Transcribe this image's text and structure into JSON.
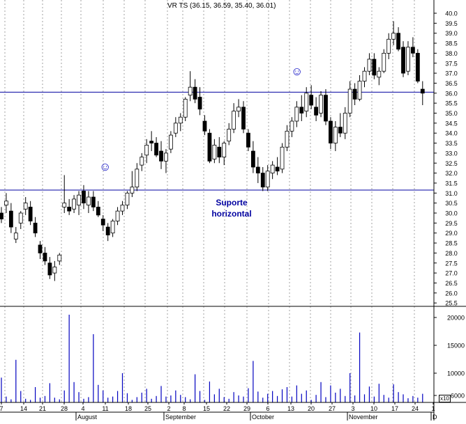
{
  "chart_data": [
    {
      "type": "candlestick",
      "title": "VR TS (36.15, 36.59, 35.40, 36.01)",
      "ohlc_last": [
        36.15,
        36.59,
        35.4,
        36.01
      ],
      "y_axis": {
        "position": "right",
        "range": [
          25.0,
          40.5
        ],
        "tick_labels": [
          "25.5",
          "26.0",
          "26.5",
          "27.0",
          "27.5",
          "28.0",
          "28.5",
          "29.0",
          "29.5",
          "30.0",
          "30.5",
          "31.0",
          "31.5",
          "32.0",
          "32.5",
          "33.0",
          "33.5",
          "34.0",
          "34.5",
          "35.0",
          "35.5",
          "36.0",
          "36.5",
          "37.0",
          "37.5",
          "38.0",
          "38.5",
          "39.0",
          "39.5",
          "40.0"
        ]
      },
      "x_axis": {
        "day_labels": [
          "7",
          "14",
          "21",
          "28",
          "4",
          "11",
          "18",
          "25",
          "2",
          "8",
          "15",
          "22",
          "29",
          "6",
          "13",
          "20",
          "27",
          "3",
          "10",
          "17",
          "24",
          "1"
        ],
        "month_labels": [
          "August",
          "September",
          "October",
          "November",
          "D"
        ]
      },
      "horizontal_lines": [
        36.05,
        31.15
      ],
      "annotations": [
        {
          "text_line1": "Suporte",
          "text_line2": "horizontal"
        }
      ],
      "markers": [
        "smiley-icon",
        "smiley-icon"
      ],
      "candles": [
        [
          30.0,
          30.3,
          29.5,
          29.7
        ],
        [
          30.4,
          31.0,
          30.0,
          30.6
        ],
        [
          30.1,
          30.5,
          29.0,
          29.3
        ],
        [
          28.7,
          29.3,
          28.5,
          29.0
        ],
        [
          29.5,
          30.1,
          29.2,
          30.0
        ],
        [
          30.2,
          30.8,
          29.9,
          30.5
        ],
        [
          30.3,
          30.6,
          29.4,
          29.6
        ],
        [
          29.5,
          29.8,
          28.8,
          29.0
        ],
        [
          28.4,
          28.6,
          27.7,
          28.0
        ],
        [
          28.0,
          28.3,
          27.4,
          27.6
        ],
        [
          27.5,
          27.8,
          26.7,
          26.9
        ],
        [
          27.0,
          27.6,
          26.6,
          27.3
        ],
        [
          27.6,
          28.0,
          27.4,
          27.9
        ],
        [
          30.3,
          31.9,
          30.0,
          30.5
        ],
        [
          30.3,
          30.7,
          29.9,
          30.1
        ],
        [
          30.2,
          30.9,
          30.0,
          30.7
        ],
        [
          30.4,
          31.1,
          29.9,
          30.9
        ],
        [
          31.1,
          31.4,
          30.2,
          30.5
        ],
        [
          30.4,
          31.1,
          30.0,
          30.8
        ],
        [
          30.8,
          31.1,
          30.1,
          30.3
        ],
        [
          30.3,
          30.6,
          29.8,
          29.9
        ],
        [
          29.7,
          29.9,
          29.1,
          29.4
        ],
        [
          29.3,
          29.5,
          28.6,
          28.9
        ],
        [
          29.0,
          29.7,
          28.8,
          29.6
        ],
        [
          29.6,
          30.3,
          29.4,
          30.1
        ],
        [
          30.1,
          30.6,
          29.9,
          30.4
        ],
        [
          30.4,
          31.1,
          30.2,
          31.0
        ],
        [
          31.0,
          32.1,
          30.8,
          31.3
        ],
        [
          31.3,
          32.5,
          31.1,
          32.2
        ],
        [
          32.4,
          33.0,
          32.1,
          32.8
        ],
        [
          32.9,
          33.7,
          32.5,
          33.4
        ],
        [
          33.6,
          34.1,
          33.1,
          33.5
        ],
        [
          33.5,
          33.8,
          32.8,
          32.9
        ],
        [
          33.1,
          33.6,
          32.2,
          32.6
        ],
        [
          32.6,
          33.2,
          32.0,
          33.0
        ],
        [
          33.2,
          34.1,
          33.0,
          33.9
        ],
        [
          34.0,
          34.8,
          33.8,
          34.5
        ],
        [
          34.5,
          35.0,
          34.1,
          34.8
        ],
        [
          34.8,
          35.8,
          34.6,
          35.7
        ],
        [
          35.9,
          37.1,
          35.6,
          36.3
        ],
        [
          36.3,
          36.7,
          35.5,
          35.7
        ],
        [
          35.8,
          36.3,
          34.9,
          35.2
        ],
        [
          34.6,
          34.9,
          33.9,
          34.1
        ],
        [
          34.0,
          34.2,
          32.5,
          32.6
        ],
        [
          32.7,
          33.7,
          32.5,
          33.4
        ],
        [
          33.3,
          33.8,
          32.5,
          32.8
        ],
        [
          32.8,
          33.6,
          32.4,
          33.5
        ],
        [
          33.6,
          34.5,
          33.4,
          34.2
        ],
        [
          34.2,
          35.5,
          34.0,
          35.1
        ],
        [
          35.1,
          35.7,
          34.8,
          35.3
        ],
        [
          35.3,
          35.6,
          34.0,
          34.2
        ],
        [
          34.0,
          34.2,
          33.1,
          33.3
        ],
        [
          33.1,
          33.6,
          32.0,
          32.3
        ],
        [
          32.3,
          32.8,
          31.5,
          32.0
        ],
        [
          32.0,
          32.3,
          31.1,
          31.3
        ],
        [
          31.3,
          32.4,
          31.1,
          32.1
        ],
        [
          32.0,
          32.6,
          31.7,
          32.4
        ],
        [
          32.3,
          32.8,
          31.9,
          32.1
        ],
        [
          32.2,
          33.5,
          32.0,
          33.3
        ],
        [
          33.3,
          34.4,
          33.1,
          34.1
        ],
        [
          34.1,
          34.8,
          33.8,
          34.6
        ],
        [
          34.6,
          35.6,
          34.3,
          35.3
        ],
        [
          35.3,
          35.9,
          34.6,
          35.0
        ],
        [
          35.1,
          36.3,
          34.8,
          36.0
        ],
        [
          35.9,
          36.4,
          35.2,
          35.4
        ],
        [
          35.3,
          35.8,
          34.6,
          34.9
        ],
        [
          35.0,
          36.1,
          34.8,
          35.9
        ],
        [
          35.9,
          36.2,
          34.4,
          34.6
        ],
        [
          34.6,
          34.8,
          33.2,
          33.5
        ],
        [
          33.5,
          34.6,
          33.1,
          34.3
        ],
        [
          34.3,
          35.0,
          33.8,
          34.0
        ],
        [
          34.0,
          35.3,
          33.7,
          35.0
        ],
        [
          35.0,
          36.6,
          34.8,
          36.2
        ],
        [
          36.2,
          36.5,
          35.4,
          35.7
        ],
        [
          35.7,
          36.9,
          35.6,
          36.6
        ],
        [
          36.6,
          37.3,
          36.3,
          37.1
        ],
        [
          37.1,
          38.0,
          36.9,
          37.7
        ],
        [
          37.7,
          38.0,
          36.7,
          36.9
        ],
        [
          36.8,
          37.3,
          36.4,
          37.1
        ],
        [
          37.1,
          38.2,
          37.0,
          38.0
        ],
        [
          38.0,
          39.0,
          37.7,
          38.7
        ],
        [
          38.7,
          39.6,
          38.4,
          39.0
        ],
        [
          39.0,
          39.3,
          38.1,
          38.2
        ],
        [
          38.3,
          38.6,
          36.8,
          37.0
        ],
        [
          37.1,
          38.6,
          36.9,
          38.3
        ],
        [
          38.3,
          38.8,
          37.8,
          38.0
        ],
        [
          38.0,
          38.2,
          36.5,
          36.6
        ],
        [
          36.2,
          36.6,
          35.4,
          36.0
        ]
      ],
      "bar_colors": {
        "up": "#ffffff",
        "down": "#000000",
        "outline": "#000000",
        "hline": "#0000a0",
        "grid": "#a0a0a0",
        "volume": "#0000c0"
      }
    },
    {
      "type": "bar",
      "y_axis": {
        "position": "right",
        "tick_labels": [
          "6000",
          "10000",
          "15000",
          "20000"
        ],
        "range": [
          5000,
          21500
        ],
        "multiplier_label": "x10"
      },
      "values": [
        9200,
        5800,
        5300,
        12400,
        6800,
        5400,
        5200,
        7500,
        5600,
        5900,
        8200,
        5600,
        5300,
        6900,
        20500,
        8400,
        6600,
        5400,
        5700,
        17000,
        7900,
        6900,
        5600,
        5800,
        6800,
        10000,
        6400,
        5200,
        5700,
        6500,
        7200,
        5400,
        5900,
        7700,
        5800,
        6000,
        6900,
        6100,
        5700,
        5300,
        9800,
        6800,
        5200,
        8500,
        6200,
        7200,
        5700,
        5400,
        6600,
        6000,
        5800,
        7300,
        12200,
        6700,
        5600,
        6300,
        6800,
        5900,
        7100,
        7500,
        5800,
        7800,
        6300,
        6900,
        5200,
        6100,
        8400,
        5700,
        7800,
        6500,
        7200,
        5900,
        10000,
        6000,
        17300,
        6200,
        7600,
        5800,
        8100,
        6100,
        5600,
        8000,
        6600,
        6200,
        5500,
        5900,
        5600,
        6300
      ]
    }
  ]
}
